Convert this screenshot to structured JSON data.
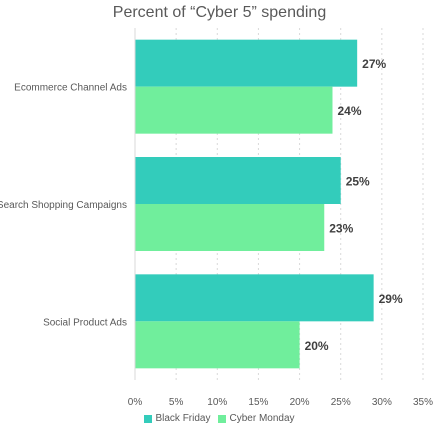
{
  "chart_data": {
    "type": "bar",
    "orientation": "horizontal",
    "title": "Percent of “Cyber 5” spending",
    "categories": [
      "Ecommerce Channel Ads",
      "Search Shopping Campaigns",
      "Social Product Ads"
    ],
    "series": [
      {
        "name": "Black Friday",
        "values": [
          27,
          25,
          29
        ],
        "labels": [
          "27%",
          "25%",
          "29%"
        ],
        "color": "#33CCBB"
      },
      {
        "name": "Cyber Monday",
        "values": [
          24,
          23,
          20
        ],
        "labels": [
          "24%",
          "23%",
          "20%"
        ],
        "color": "#70EE9C"
      }
    ],
    "xlim": [
      0,
      35
    ],
    "xticks": [
      0,
      5,
      10,
      15,
      20,
      25,
      30,
      35
    ],
    "xtick_labels": [
      "0%",
      "5%",
      "10%",
      "15%",
      "20%",
      "25%",
      "30%",
      "35%"
    ],
    "grid": "vertical-dashed",
    "legend_position": "bottom"
  }
}
